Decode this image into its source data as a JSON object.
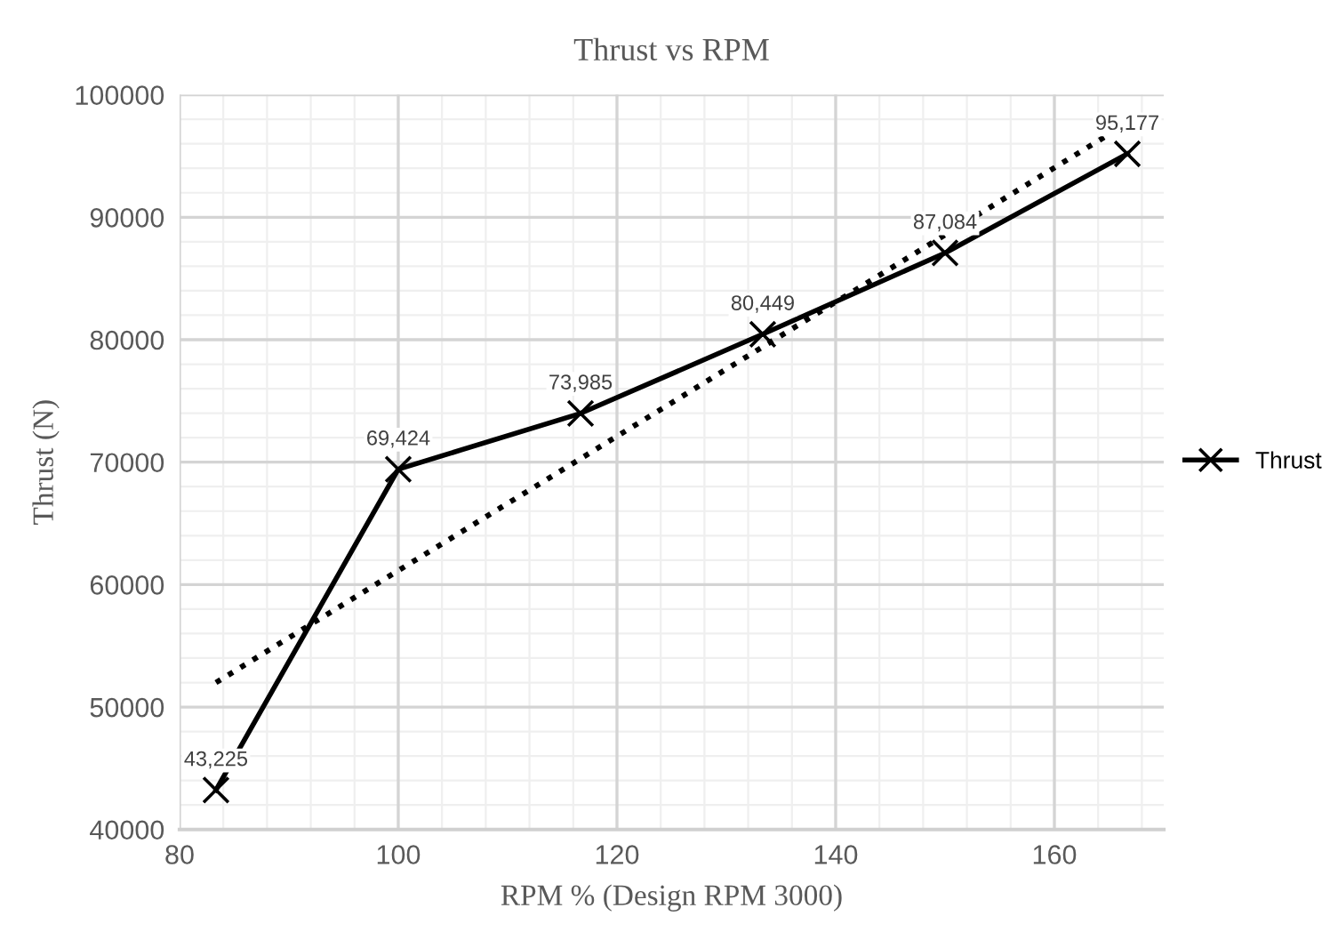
{
  "chart_data": {
    "type": "line",
    "title": "Thrust vs RPM",
    "xlabel": "RPM % (Design RPM 3000)",
    "ylabel": "Thrust (N)",
    "xlim": [
      80,
      170
    ],
    "xticks": [
      80,
      100,
      120,
      140,
      160
    ],
    "ylim": [
      40000,
      100000
    ],
    "yticks": [
      40000,
      50000,
      60000,
      70000,
      80000,
      90000,
      100000
    ],
    "grid": true,
    "legend": "right",
    "series": [
      {
        "name": "Thrust",
        "color": "#000000",
        "marker": "cross",
        "line_style": "solid",
        "x": [
          83.33,
          100,
          116.67,
          133.33,
          150,
          166.67
        ],
        "values": [
          43225,
          69424,
          73985,
          80449,
          87084,
          95177
        ],
        "value_labels": [
          "43,225",
          "69,424",
          "73,985",
          "80,449",
          "87,084",
          "95,177"
        ]
      },
      {
        "type": "line",
        "color": "#000000",
        "line_style": "dotted",
        "x": [
          83.33,
          166.67
        ],
        "values": [
          52000,
          97700
        ]
      }
    ]
  }
}
